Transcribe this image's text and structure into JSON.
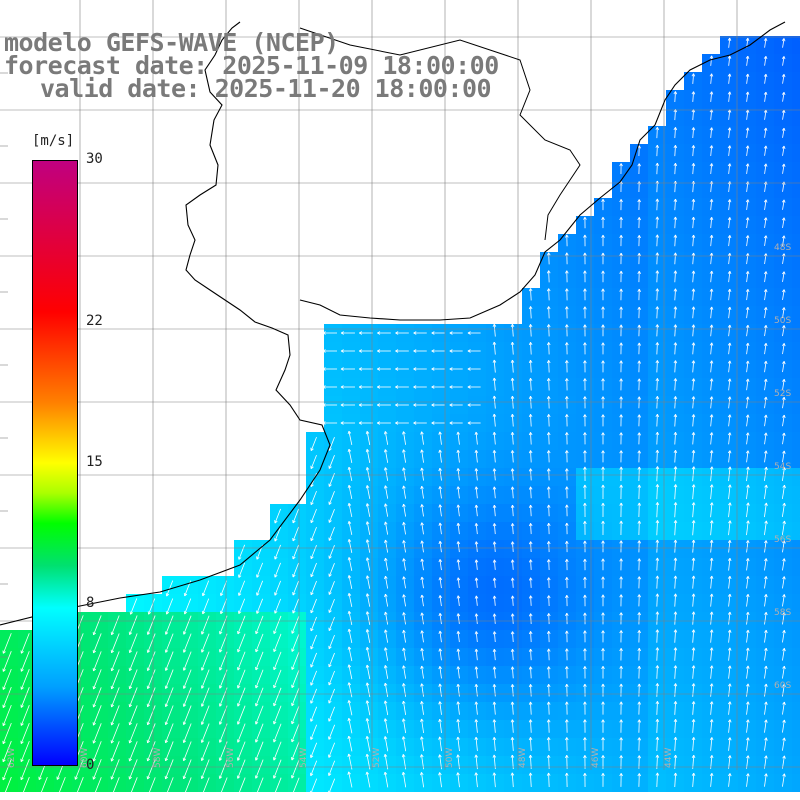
{
  "title": {
    "model": "modelo GEFS-WAVE (NCEP)",
    "forecast": "forecast date: 2025-11-09 18:00:00",
    "valid": "valid date: 2025-11-20 18:00:00"
  },
  "colorbar": {
    "unit": "[m/s]",
    "ticks": [
      "30",
      "22",
      "15",
      "8",
      "0"
    ],
    "tick_values": [
      30,
      22,
      15,
      8,
      0
    ],
    "range": [
      0,
      30
    ],
    "colors": [
      "#0000ff",
      "#00a0ff",
      "#00ffff",
      "#00e070",
      "#00ff00",
      "#ffff00",
      "#ff8000",
      "#ff0000",
      "#c00080"
    ]
  },
  "map": {
    "land_color": "#ffffff",
    "coastline_color": "#000000",
    "grid_color": "#808080",
    "arrow_color": "#ffffff",
    "grid_labels": [
      {
        "text": "60S",
        "kind": "lat-right"
      },
      {
        "text": "58S",
        "kind": "lat-right"
      },
      {
        "text": "56S",
        "kind": "lat-right"
      },
      {
        "text": "54S",
        "kind": "lat-right"
      },
      {
        "text": "52S",
        "kind": "lat-right"
      },
      {
        "text": "50S",
        "kind": "lat-right"
      },
      {
        "text": "48S",
        "kind": "lat-right"
      },
      {
        "text": "62W",
        "kind": "lon-bottom"
      },
      {
        "text": "60W",
        "kind": "lon-bottom"
      },
      {
        "text": "58W",
        "kind": "lon-bottom"
      },
      {
        "text": "56W",
        "kind": "lon-bottom"
      },
      {
        "text": "54W",
        "kind": "lon-bottom"
      },
      {
        "text": "52W",
        "kind": "lon-bottom"
      },
      {
        "text": "50W",
        "kind": "lon-bottom"
      },
      {
        "text": "48W",
        "kind": "lon-bottom"
      },
      {
        "text": "46W",
        "kind": "lon-bottom"
      },
      {
        "text": "44W",
        "kind": "lon-bottom"
      }
    ]
  }
}
